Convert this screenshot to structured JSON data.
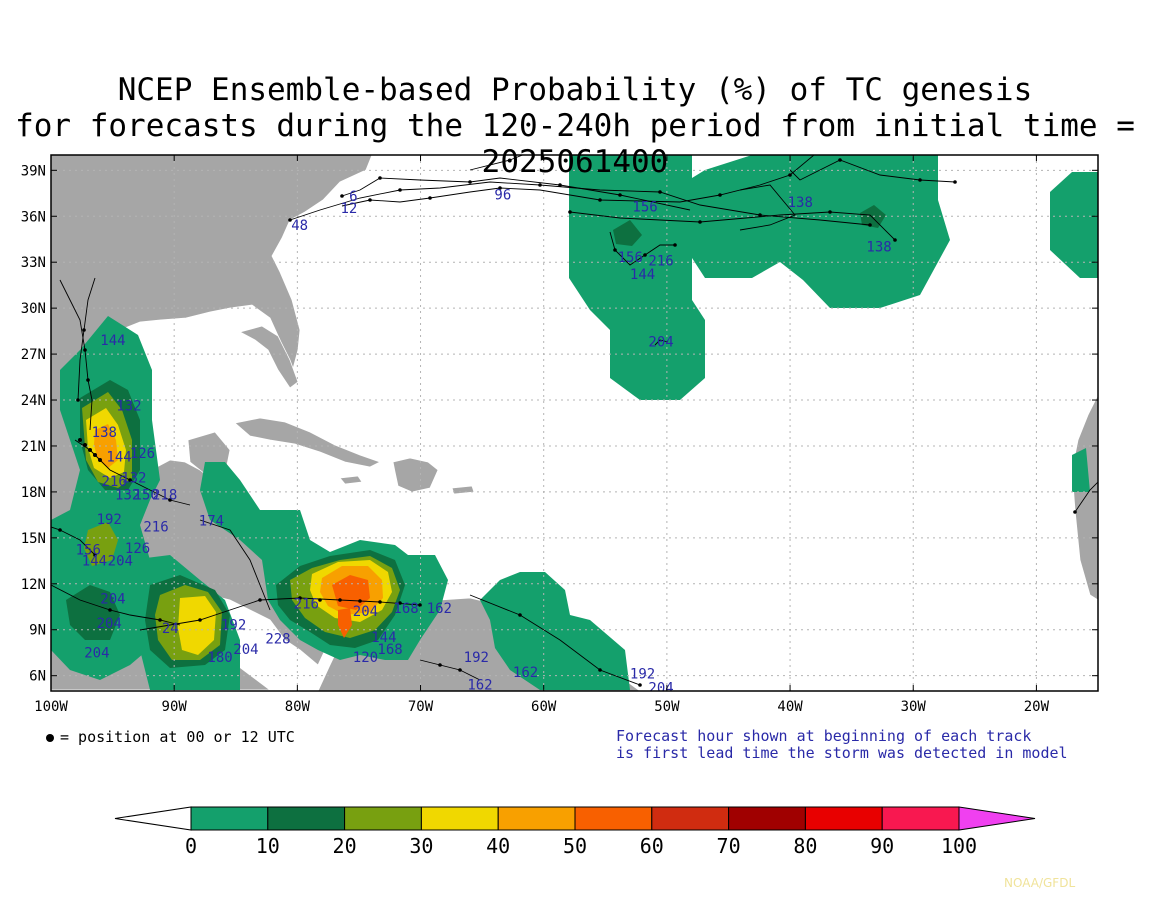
{
  "title_line1": "NCEP Ensemble-based Probability (%) of TC genesis",
  "title_line2": "for forecasts during the 120-240h period from initial time = 2025061400",
  "lat_labels": [
    "39N",
    "36N",
    "33N",
    "30N",
    "27N",
    "24N",
    "21N",
    "18N",
    "15N",
    "12N",
    "9N",
    "6N"
  ],
  "lat_values": [
    39,
    36,
    33,
    30,
    27,
    24,
    21,
    18,
    15,
    12,
    9,
    6
  ],
  "lon_labels": [
    "100W",
    "90W",
    "80W",
    "70W",
    "60W",
    "50W",
    "40W",
    "30W",
    "20W"
  ],
  "lon_values": [
    100,
    90,
    80,
    70,
    60,
    50,
    40,
    30,
    20
  ],
  "map_extent": {
    "lon_west": 100,
    "lon_east": 15,
    "lat_south": 5,
    "lat_north": 40
  },
  "legend_dot_text": "= position at 00 or 12 UTC",
  "note_line1": "Forecast hour shown at beginning of each track",
  "note_line2": "is first lead time the storm was detected in model",
  "colorbar": {
    "ticks": [
      "0",
      "10",
      "20",
      "30",
      "40",
      "50",
      "60",
      "70",
      "80",
      "90",
      "100"
    ],
    "colors": [
      "#ffffff",
      "#14a06c",
      "#0d7040",
      "#78a010",
      "#f0d800",
      "#f8a000",
      "#f86000",
      "#d02c10",
      "#a00000",
      "#e80000",
      "#f81850",
      "#f040f0"
    ]
  },
  "credit": "NOAA/GFDL",
  "colors": {
    "land": "#a6a6a6",
    "ocean": "#ffffff",
    "track": "#000000",
    "label": "#2a2aa8",
    "grid": "#b4b4b4"
  },
  "forecast_labels": [
    {
      "text": "6",
      "lon": 75.8,
      "lat": 37.0
    },
    {
      "text": "12",
      "lon": 76.5,
      "lat": 36.2
    },
    {
      "text": "48",
      "lon": 80.5,
      "lat": 35.1
    },
    {
      "text": "96",
      "lon": 64.0,
      "lat": 37.1
    },
    {
      "text": "156",
      "lon": 52.8,
      "lat": 36.3
    },
    {
      "text": "138",
      "lon": 40.2,
      "lat": 36.6
    },
    {
      "text": "138",
      "lon": 33.8,
      "lat": 33.7
    },
    {
      "text": "156",
      "lon": 54.0,
      "lat": 33.0
    },
    {
      "text": "216",
      "lon": 51.5,
      "lat": 32.8
    },
    {
      "text": "144",
      "lon": 53.0,
      "lat": 31.9
    },
    {
      "text": "204",
      "lon": 51.5,
      "lat": 27.5
    },
    {
      "text": "144",
      "lon": 96.0,
      "lat": 27.6
    },
    {
      "text": "132",
      "lon": 94.7,
      "lat": 23.3
    },
    {
      "text": "138",
      "lon": 96.7,
      "lat": 21.6
    },
    {
      "text": "126",
      "lon": 93.6,
      "lat": 20.2
    },
    {
      "text": "144",
      "lon": 95.5,
      "lat": 20.0
    },
    {
      "text": "132",
      "lon": 94.3,
      "lat": 18.6
    },
    {
      "text": "216",
      "lon": 95.9,
      "lat": 18.4
    },
    {
      "text": "132",
      "lon": 94.8,
      "lat": 17.5
    },
    {
      "text": "150",
      "lon": 93.3,
      "lat": 17.5
    },
    {
      "text": "218",
      "lon": 91.8,
      "lat": 17.5
    },
    {
      "text": "192",
      "lon": 96.3,
      "lat": 15.9
    },
    {
      "text": "216",
      "lon": 92.5,
      "lat": 15.4
    },
    {
      "text": "126",
      "lon": 94.0,
      "lat": 14.0
    },
    {
      "text": "156",
      "lon": 98.0,
      "lat": 13.9
    },
    {
      "text": "144",
      "lon": 97.5,
      "lat": 13.2
    },
    {
      "text": "204",
      "lon": 95.4,
      "lat": 13.2
    },
    {
      "text": "174",
      "lon": 88.0,
      "lat": 15.8
    },
    {
      "text": "204",
      "lon": 96.0,
      "lat": 10.7
    },
    {
      "text": "204",
      "lon": 96.3,
      "lat": 9.1
    },
    {
      "text": "204",
      "lon": 97.3,
      "lat": 7.2
    },
    {
      "text": "24",
      "lon": 91.0,
      "lat": 8.8
    },
    {
      "text": "192",
      "lon": 86.2,
      "lat": 9.0
    },
    {
      "text": "180",
      "lon": 87.3,
      "lat": 6.9
    },
    {
      "text": "204",
      "lon": 85.2,
      "lat": 7.4
    },
    {
      "text": "228",
      "lon": 82.6,
      "lat": 8.1
    },
    {
      "text": "216",
      "lon": 80.3,
      "lat": 10.4
    },
    {
      "text": "204",
      "lon": 75.5,
      "lat": 9.9
    },
    {
      "text": "168",
      "lon": 72.2,
      "lat": 10.1
    },
    {
      "text": "144",
      "lon": 74.0,
      "lat": 8.2
    },
    {
      "text": "168",
      "lon": 73.5,
      "lat": 7.4
    },
    {
      "text": "120",
      "lon": 75.5,
      "lat": 6.9
    },
    {
      "text": "162",
      "lon": 69.5,
      "lat": 10.1
    },
    {
      "text": "192",
      "lon": 66.5,
      "lat": 6.9
    },
    {
      "text": "162",
      "lon": 62.5,
      "lat": 5.9
    },
    {
      "text": "162",
      "lon": 66.2,
      "lat": 5.1
    },
    {
      "text": "192",
      "lon": 53.0,
      "lat": 5.8
    },
    {
      "text": "204",
      "lon": 51.5,
      "lat": 4.9
    }
  ]
}
